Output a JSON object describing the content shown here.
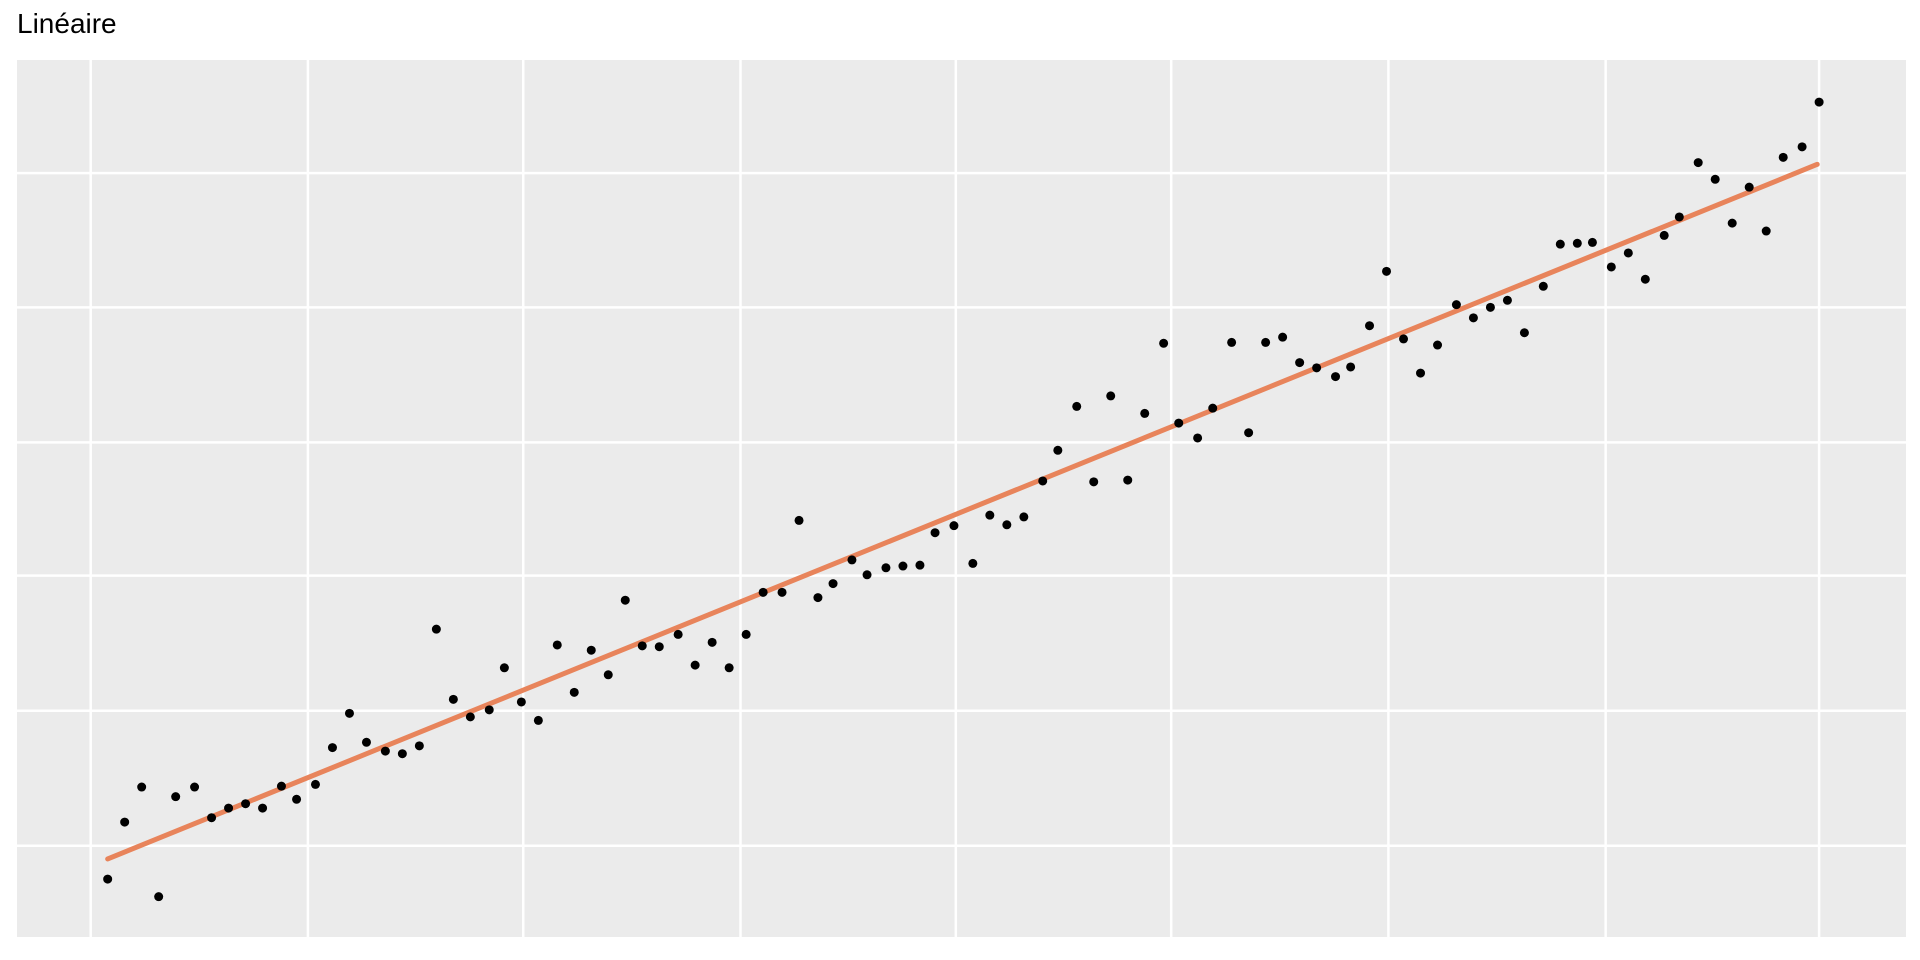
{
  "page": {
    "background": "#FFFFFF"
  },
  "header": {
    "title": "Linéaire"
  },
  "colors": {
    "panel_background": "#EBEBEB",
    "gridline": "#FFFFFF",
    "point": "#000000",
    "trend_line": "#E8845B",
    "title_text": "#000000"
  },
  "chart_data": {
    "type": "scatter",
    "title": "Linéaire",
    "subtitle": "",
    "xlabel": "",
    "ylabel": "",
    "legend": "none",
    "grid": "on",
    "axis_tick_labels_visible": false,
    "description": "Scatter of ~100 evenly spaced points with linear trend and noise; fitted straight smoothing line. Coordinates are percent of plot panel (x from left, y from bottom).",
    "x_gridlines_pct": [
      3.9,
      15.4,
      26.8,
      38.3,
      49.7,
      61.1,
      72.6,
      84.1,
      95.4
    ],
    "y_gridlines_pct": [
      10.4,
      25.8,
      41.2,
      56.4,
      71.8,
      87.1
    ],
    "trend_line": {
      "type": "linear",
      "start_pct": [
        4.8,
        8.9
      ],
      "end_pct": [
        95.3,
        88.1
      ],
      "stroke_width": 5,
      "color": "#E8845B"
    },
    "point_radius": 4.5,
    "points_pct": [
      [
        4.8,
        6.6
      ],
      [
        5.7,
        13.1
      ],
      [
        6.6,
        17.1
      ],
      [
        7.5,
        4.6
      ],
      [
        8.4,
        16.0
      ],
      [
        9.4,
        17.1
      ],
      [
        10.3,
        13.6
      ],
      [
        11.2,
        14.7
      ],
      [
        12.1,
        15.2
      ],
      [
        13.0,
        14.7
      ],
      [
        14.0,
        17.2
      ],
      [
        14.8,
        15.7
      ],
      [
        15.8,
        17.4
      ],
      [
        16.7,
        21.6
      ],
      [
        17.6,
        25.5
      ],
      [
        18.5,
        22.2
      ],
      [
        19.5,
        21.2
      ],
      [
        20.4,
        20.9
      ],
      [
        21.3,
        21.8
      ],
      [
        22.2,
        35.1
      ],
      [
        23.1,
        27.1
      ],
      [
        24.0,
        25.1
      ],
      [
        25.0,
        25.9
      ],
      [
        25.8,
        30.7
      ],
      [
        26.7,
        26.8
      ],
      [
        27.6,
        24.7
      ],
      [
        28.6,
        33.3
      ],
      [
        29.5,
        27.9
      ],
      [
        30.4,
        32.7
      ],
      [
        31.3,
        29.9
      ],
      [
        32.2,
        38.4
      ],
      [
        33.1,
        33.2
      ],
      [
        34.0,
        33.1
      ],
      [
        35.0,
        34.5
      ],
      [
        35.9,
        31.0
      ],
      [
        36.8,
        33.6
      ],
      [
        37.7,
        30.7
      ],
      [
        38.6,
        34.5
      ],
      [
        39.5,
        39.3
      ],
      [
        40.5,
        39.3
      ],
      [
        41.4,
        47.5
      ],
      [
        42.4,
        38.7
      ],
      [
        43.2,
        40.3
      ],
      [
        44.2,
        43.0
      ],
      [
        45.0,
        41.3
      ],
      [
        46.0,
        42.1
      ],
      [
        46.9,
        42.3
      ],
      [
        47.8,
        42.4
      ],
      [
        48.6,
        46.1
      ],
      [
        49.6,
        46.9
      ],
      [
        50.6,
        42.6
      ],
      [
        51.5,
        48.1
      ],
      [
        52.4,
        47.0
      ],
      [
        53.3,
        47.9
      ],
      [
        54.3,
        52.0
      ],
      [
        55.1,
        55.5
      ],
      [
        56.1,
        60.5
      ],
      [
        57.0,
        51.9
      ],
      [
        57.9,
        61.7
      ],
      [
        58.8,
        52.1
      ],
      [
        59.7,
        59.7
      ],
      [
        60.7,
        67.7
      ],
      [
        61.5,
        58.6
      ],
      [
        62.5,
        56.9
      ],
      [
        63.3,
        60.3
      ],
      [
        64.3,
        67.8
      ],
      [
        65.2,
        57.5
      ],
      [
        66.1,
        67.8
      ],
      [
        67.0,
        68.4
      ],
      [
        67.9,
        65.5
      ],
      [
        68.8,
        64.9
      ],
      [
        69.8,
        63.9
      ],
      [
        70.6,
        65.0
      ],
      [
        71.6,
        69.7
      ],
      [
        72.5,
        75.9
      ],
      [
        73.4,
        68.2
      ],
      [
        74.3,
        64.3
      ],
      [
        75.2,
        67.5
      ],
      [
        76.2,
        72.1
      ],
      [
        77.1,
        70.6
      ],
      [
        78.0,
        71.8
      ],
      [
        78.9,
        72.6
      ],
      [
        79.8,
        68.9
      ],
      [
        80.8,
        74.2
      ],
      [
        81.7,
        79.0
      ],
      [
        82.6,
        79.1
      ],
      [
        83.4,
        79.2
      ],
      [
        84.4,
        76.4
      ],
      [
        85.3,
        78.0
      ],
      [
        86.2,
        75.0
      ],
      [
        87.2,
        80.0
      ],
      [
        88.0,
        82.1
      ],
      [
        89.0,
        88.3
      ],
      [
        89.9,
        86.4
      ],
      [
        90.8,
        81.4
      ],
      [
        91.7,
        85.5
      ],
      [
        92.6,
        80.5
      ],
      [
        93.5,
        88.9
      ],
      [
        94.5,
        90.1
      ],
      [
        95.4,
        95.2
      ]
    ]
  }
}
